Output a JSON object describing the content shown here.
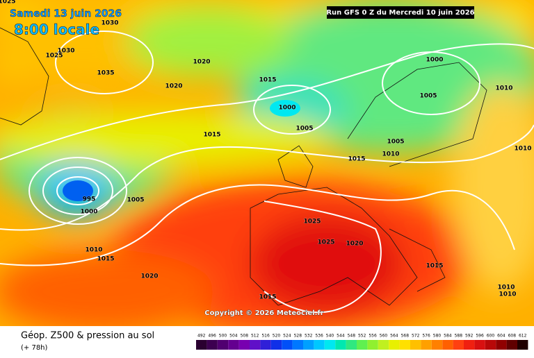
{
  "header": {
    "date": "Samedi 13 juin 2026",
    "time": "8:00 locale",
    "run": "Run GFS 0 Z du Mercredi 10 juin 2026"
  },
  "isobars": [
    "1025",
    "1030",
    "1030",
    "1025",
    "1035",
    "1020",
    "1020",
    "1015",
    "1000",
    "1005",
    "1000",
    "1010",
    "1005",
    "1015",
    "1005",
    "1010",
    "1015",
    "1010",
    "995",
    "1005",
    "1000",
    "1025",
    "1025",
    "1020",
    "1010",
    "1015",
    "1020",
    "1015",
    "1010",
    "1010",
    "1015"
  ],
  "copyright": "Copyright © 2026 Meteociel.fr",
  "footer": {
    "title": "Géop. Z500 & pression au sol",
    "lead": "(+ 78h)"
  },
  "scale": [
    {
      "label": "492",
      "color": "#2a0030"
    },
    {
      "label": "496",
      "color": "#3c0050"
    },
    {
      "label": "500",
      "color": "#500070"
    },
    {
      "label": "504",
      "color": "#640090"
    },
    {
      "label": "508",
      "color": "#7800b0"
    },
    {
      "label": "512",
      "color": "#6010c8"
    },
    {
      "label": "516",
      "color": "#3020d8"
    },
    {
      "label": "520",
      "color": "#1030e8"
    },
    {
      "label": "524",
      "color": "#0050f8"
    },
    {
      "label": "528",
      "color": "#0078ff"
    },
    {
      "label": "532",
      "color": "#00a0ff"
    },
    {
      "label": "536",
      "color": "#00c8ff"
    },
    {
      "label": "540",
      "color": "#00e8f0"
    },
    {
      "label": "544",
      "color": "#00e8b0"
    },
    {
      "label": "548",
      "color": "#30e880"
    },
    {
      "label": "552",
      "color": "#60f050"
    },
    {
      "label": "556",
      "color": "#90f030"
    },
    {
      "label": "560",
      "color": "#c0f020"
    },
    {
      "label": "564",
      "color": "#e8f000"
    },
    {
      "label": "568",
      "color": "#ffe000"
    },
    {
      "label": "572",
      "color": "#ffc000"
    },
    {
      "label": "576",
      "color": "#ffa000"
    },
    {
      "label": "580",
      "color": "#ff8000"
    },
    {
      "label": "584",
      "color": "#ff6000"
    },
    {
      "label": "588",
      "color": "#ff4010"
    },
    {
      "label": "592",
      "color": "#f02010"
    },
    {
      "label": "596",
      "color": "#d81010"
    },
    {
      "label": "600",
      "color": "#b80808"
    },
    {
      "label": "604",
      "color": "#900000"
    },
    {
      "label": "608",
      "color": "#600000"
    },
    {
      "label": "612",
      "color": "#200000"
    }
  ]
}
